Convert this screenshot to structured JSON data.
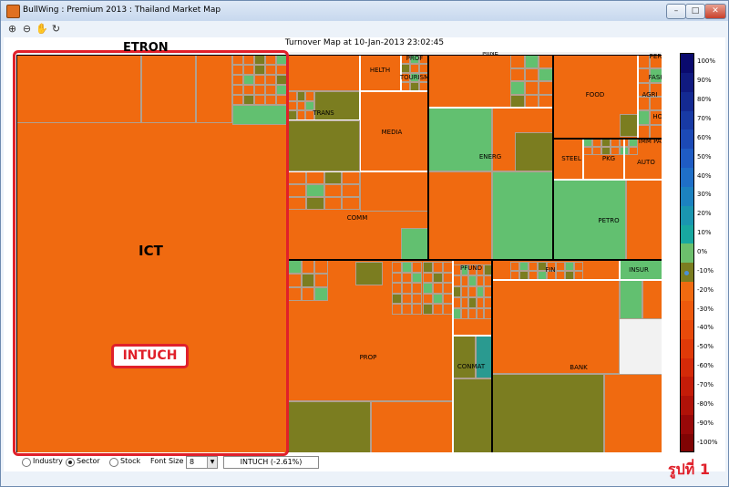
{
  "window": {
    "title": "BullWing : Premium 2013 : Thailand Market Map",
    "controls": [
      "–",
      "□",
      "✕"
    ]
  },
  "toolbar": {
    "tools": [
      {
        "name": "zoom-in-icon",
        "glyph": "⊕"
      },
      {
        "name": "zoom-out-icon",
        "glyph": "⊖"
      },
      {
        "name": "pan-hand-icon",
        "glyph": "✋"
      },
      {
        "name": "rotate-icon",
        "glyph": "↻"
      }
    ]
  },
  "map": {
    "title": "Turnover Map at 10-Jan-2013 23:02:45",
    "annotations": {
      "top": "ETRON",
      "sector": "ICT",
      "stock": "INTUCH"
    },
    "colors": {
      "down_orange": "#f06a10",
      "flat_olive": "#7b7d20",
      "up_green": "#62c070",
      "up_teal": "#2a9a90",
      "white_border": "#ffffff",
      "highlight_red": "#e0202a"
    },
    "sector_labels": [
      "ICT",
      "TRANS",
      "HELTH",
      "PROF",
      "TOURISM",
      "MEDIA",
      "COMM",
      "MINE",
      "ENERG",
      "FOOD",
      "AGRI",
      "FASHION",
      "PERSON",
      "HOME",
      "IMM PAPER",
      "STEEL",
      "PKG",
      "AUTO",
      "PETRO",
      "PFUND",
      "FIN",
      "INSUR",
      "PROP",
      "CONMAT",
      "BANK"
    ]
  },
  "colorbar": {
    "ticks": [
      "100%",
      "90%",
      "80%",
      "70%",
      "60%",
      "50%",
      "40%",
      "30%",
      "20%",
      "10%",
      "0%",
      "-10%",
      "-20%",
      "-30%",
      "-40%",
      "-50%",
      "-60%",
      "-70%",
      "-80%",
      "-90%",
      "-100%"
    ],
    "colors": [
      "#0a0a6e",
      "#101a80",
      "#142a92",
      "#183aa4",
      "#1c4ab6",
      "#1f5cc4",
      "#1f6fc8",
      "#1c82c0",
      "#1a96b0",
      "#18a8a0",
      "#6cbf6c",
      "#7b7d20",
      "#f06a10",
      "#ee5a0c",
      "#e84a0a",
      "#e03a08",
      "#d42a08",
      "#c41c08",
      "#b01208",
      "#980808",
      "#800404"
    ]
  },
  "bottom": {
    "view_options": [
      "Industry",
      "Sector",
      "Stock"
    ],
    "selected_view": "Sector",
    "font_size_label": "Font Size :",
    "font_size_value": "8",
    "status_text": "INTUCH  (-2.61%)"
  },
  "caption": "รูปที่  1"
}
